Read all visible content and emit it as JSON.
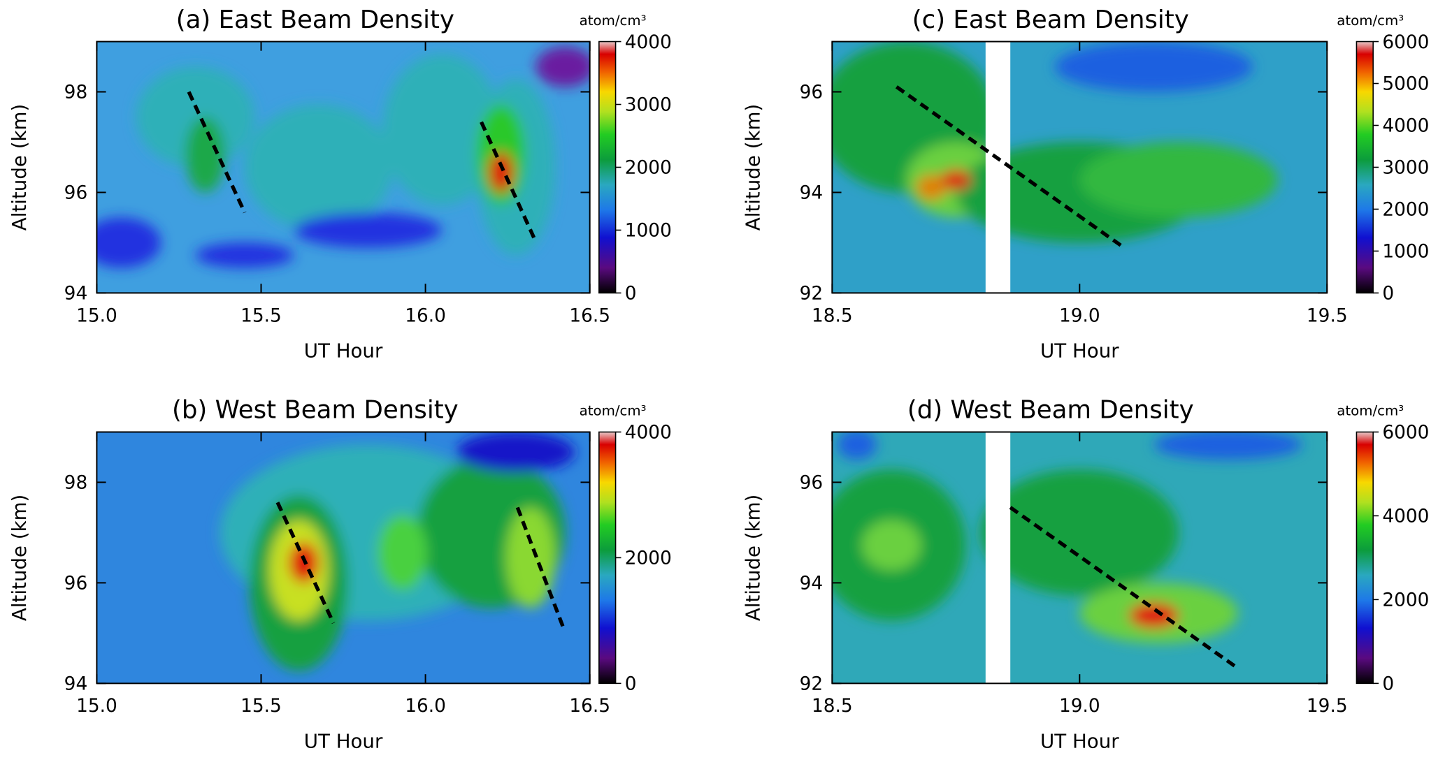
{
  "chart_data": [
    {
      "type": "contour",
      "title": "(a)  East Beam Density",
      "x_label": "UT Hour",
      "y_label": "Altitude (km)",
      "xlim": [
        15,
        16.5
      ],
      "xticks": [
        {
          "value": 15,
          "label": "15.0"
        },
        15.5,
        {
          "value": 16,
          "label": "16.0"
        },
        16.5
      ],
      "ylim": [
        94,
        99
      ],
      "yticks": [
        94,
        96,
        98
      ],
      "colorbar_label": "atom/cm³",
      "clim": [
        0,
        4000
      ],
      "cticks": [
        0,
        1000,
        2000,
        3000,
        4000
      ],
      "lines": [
        {
          "x": [
            15.28,
            15.45
          ],
          "y": [
            98.0,
            95.6
          ]
        },
        {
          "x": [
            16.17,
            16.33
          ],
          "y": [
            97.4,
            95.1
          ]
        }
      ]
    },
    {
      "type": "contour",
      "title": "(b)  West Beam Density",
      "x_label": "UT Hour",
      "y_label": "Altitude (km)",
      "xlim": [
        15,
        16.5
      ],
      "xticks": [
        {
          "value": 15,
          "label": "15.0"
        },
        15.5,
        {
          "value": 16,
          "label": "16.0"
        },
        16.5
      ],
      "ylim": [
        94,
        99
      ],
      "yticks": [
        94,
        96,
        98
      ],
      "colorbar_label": "atom/cm³",
      "clim": [
        0,
        4000
      ],
      "cticks": [
        0,
        2000,
        4000
      ],
      "lines": [
        {
          "x": [
            15.55,
            15.72
          ],
          "y": [
            97.6,
            95.2
          ]
        },
        {
          "x": [
            16.28,
            16.42
          ],
          "y": [
            97.5,
            95.1
          ]
        }
      ]
    },
    {
      "type": "contour",
      "title": "(c)  East Beam Density",
      "x_label": "UT Hour",
      "y_label": "Altitude (km)",
      "xlim": [
        18.5,
        19.5
      ],
      "xticks": [
        18.5,
        {
          "value": 19,
          "label": "19.0"
        },
        19.5
      ],
      "ylim": [
        92,
        97
      ],
      "yticks": [
        92,
        94,
        96
      ],
      "colorbar_label": "atom/cm³",
      "clim": [
        0,
        6000
      ],
      "cticks": [
        0,
        1000,
        2000,
        3000,
        4000,
        5000,
        6000
      ],
      "gap_x": [
        18.81,
        18.86
      ],
      "lines": [
        {
          "x": [
            18.63,
            19.09
          ],
          "y": [
            96.1,
            92.9
          ]
        }
      ]
    },
    {
      "type": "contour",
      "title": "(d)  West Beam Density",
      "x_label": "UT Hour",
      "y_label": "Altitude (km)",
      "xlim": [
        18.5,
        19.5
      ],
      "xticks": [
        18.5,
        {
          "value": 19,
          "label": "19.0"
        },
        19.5
      ],
      "ylim": [
        92,
        97
      ],
      "yticks": [
        92,
        94,
        96
      ],
      "colorbar_label": "atom/cm³",
      "clim": [
        0,
        6000
      ],
      "cticks": [
        0,
        2000,
        4000,
        6000
      ],
      "gap_x": [
        18.81,
        18.86
      ],
      "lines": [
        {
          "x": [
            18.86,
            19.32
          ],
          "y": [
            95.5,
            92.3
          ]
        }
      ]
    }
  ]
}
